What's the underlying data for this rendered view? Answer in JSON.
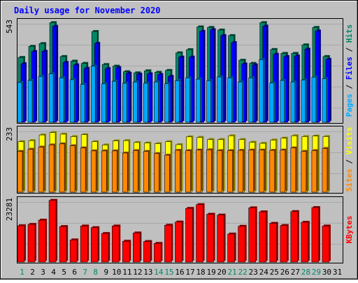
{
  "chart_data": [
    {
      "type": "bar",
      "title": "Daily usage for November 2020",
      "ylabel_parts": [
        {
          "text": "Pages",
          "color": "#00aaff"
        },
        {
          "text": " / ",
          "color": "#000000"
        },
        {
          "text": "Files",
          "color": "#0000ff"
        },
        {
          "text": " / ",
          "color": "#000000"
        },
        {
          "text": "Hits",
          "color": "#008866"
        }
      ],
      "ymax_label": "543",
      "ymax": 543,
      "categories": [
        "1",
        "2",
        "3",
        "4",
        "5",
        "6",
        "7",
        "8",
        "9",
        "10",
        "11",
        "12",
        "13",
        "14",
        "15",
        "16",
        "17",
        "18",
        "19",
        "20",
        "21",
        "22",
        "23",
        "24",
        "25",
        "26",
        "27",
        "28",
        "29",
        "30",
        "31"
      ],
      "weekend_days": [
        1,
        7,
        8,
        14,
        15,
        21,
        22,
        28,
        29
      ],
      "series": [
        {
          "name": "Hits",
          "color": "#008866",
          "values": [
            350,
            410,
            425,
            538,
            355,
            330,
            318,
            490,
            312,
            303,
            273,
            267,
            278,
            270,
            280,
            375,
            392,
            515,
            512,
            498,
            468,
            335,
            318,
            538,
            393,
            372,
            372,
            418,
            512,
            355,
            0
          ]
        },
        {
          "name": "Files",
          "color": "#0000ff",
          "values": [
            316,
            382,
            383,
            518,
            323,
            310,
            291,
            426,
            290,
            295,
            265,
            260,
            262,
            258,
            248,
            352,
            352,
            491,
            500,
            468,
            430,
            315,
            310,
            519,
            367,
            355,
            358,
            395,
            493,
            340,
            0
          ]
        },
        {
          "name": "Pages",
          "color": "#00aaff",
          "values": [
            215,
            226,
            248,
            262,
            240,
            230,
            205,
            303,
            208,
            222,
            211,
            218,
            211,
            218,
            208,
            225,
            240,
            233,
            225,
            245,
            240,
            218,
            240,
            338,
            212,
            226,
            218,
            228,
            244,
            236,
            0
          ]
        }
      ]
    },
    {
      "type": "bar",
      "ylabel_parts": [
        {
          "text": "Sites",
          "color": "#ff8800"
        },
        {
          "text": " / ",
          "color": "#000000"
        },
        {
          "text": "Visits",
          "color": "#ffff00"
        }
      ],
      "ymax_label": "233",
      "ymax": 233,
      "series": [
        {
          "name": "Visits",
          "color": "#ffff00",
          "values": [
            187,
            191,
            212,
            221,
            215,
            206,
            213,
            187,
            175,
            190,
            191,
            184,
            182,
            180,
            187,
            176,
            205,
            203,
            195,
            195,
            209,
            195,
            185,
            181,
            193,
            200,
            209,
            206,
            208,
            206,
            0
          ]
        },
        {
          "name": "Sites",
          "color": "#ff8800",
          "values": [
            151,
            159,
            167,
            175,
            179,
            172,
            164,
            153,
            153,
            153,
            145,
            154,
            151,
            143,
            137,
            155,
            154,
            156,
            157,
            154,
            154,
            155,
            156,
            156,
            155,
            156,
            164,
            151,
            154,
            162,
            0
          ]
        }
      ]
    },
    {
      "type": "bar",
      "ylabel_parts": [
        {
          "text": "KBytes",
          "color": "#ff0000"
        }
      ],
      "ymax_label": "23281",
      "ymax": 23281,
      "series": [
        {
          "name": "KBytes",
          "color": "#ff0000",
          "values": [
            13600,
            14100,
            15700,
            23100,
            13300,
            8300,
            13500,
            12900,
            10700,
            13500,
            7800,
            10900,
            7700,
            7000,
            13800,
            15000,
            20100,
            21500,
            17900,
            17600,
            10500,
            13400,
            20300,
            18800,
            14500,
            13700,
            18900,
            14900,
            20400,
            13500,
            0
          ]
        }
      ]
    }
  ]
}
